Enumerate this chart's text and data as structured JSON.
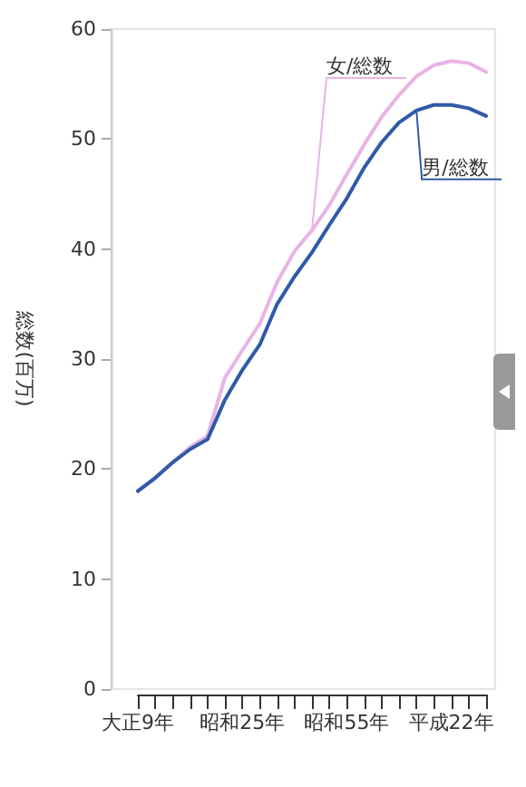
{
  "chart_data": {
    "type": "line",
    "ylabel": "総数(百万)",
    "categories": [
      "大正9年",
      null,
      null,
      null,
      null,
      null,
      "昭和25年",
      null,
      null,
      null,
      null,
      null,
      "昭和55年",
      null,
      null,
      null,
      null,
      null,
      "平成22年",
      null,
      null
    ],
    "ylim": [
      0,
      60
    ],
    "yticks": [
      0,
      10,
      20,
      30,
      40,
      50,
      60
    ],
    "grid": false,
    "legend": false,
    "marker": "none",
    "line_style": "solid",
    "series": [
      {
        "name": "女/総数",
        "color": "#e8b4e4",
        "values": [
          18.0,
          19.2,
          20.6,
          22.0,
          23.0,
          28.3,
          30.8,
          33.2,
          37.0,
          39.8,
          41.7,
          44.0,
          46.8,
          49.5,
          52.0,
          54.0,
          55.7,
          56.7,
          57.1,
          56.9,
          56.1
        ]
      },
      {
        "name": "男/総数",
        "color": "#2f5aa8",
        "values": [
          18.0,
          19.2,
          20.6,
          21.8,
          22.7,
          26.3,
          29.0,
          31.3,
          35.0,
          37.5,
          39.7,
          42.2,
          44.6,
          47.4,
          49.7,
          51.5,
          52.6,
          53.1,
          53.1,
          52.8,
          52.1
        ]
      }
    ]
  }
}
